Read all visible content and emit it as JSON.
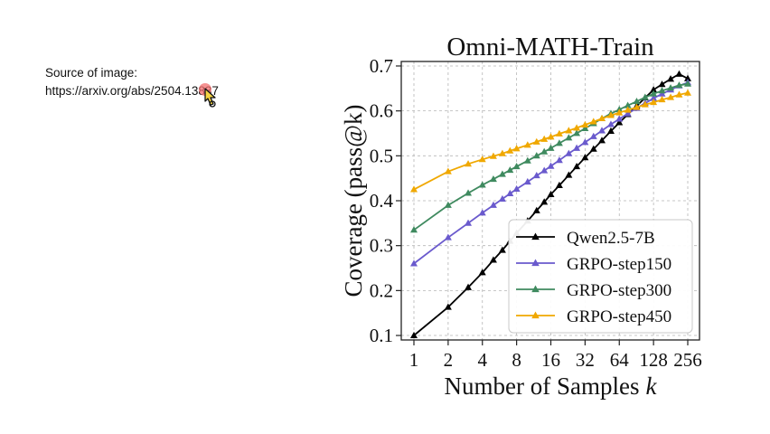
{
  "source": {
    "label": "Source of image:",
    "url": "https://arxiv.org/abs/2504.13837"
  },
  "chart_data": {
    "type": "line",
    "title": "Omni-MATH-Train",
    "xlabel": "Number of Samples",
    "xlabel_var": "k",
    "ylabel": "Coverage (pass@k)",
    "x_scale": "log2",
    "x": [
      1,
      2,
      3,
      4,
      5,
      6,
      7,
      8,
      10,
      12,
      14,
      16,
      19,
      23,
      27,
      32,
      38,
      45,
      54,
      64,
      76,
      91,
      108,
      128,
      152,
      181,
      215,
      256
    ],
    "x_ticks": [
      1,
      2,
      4,
      8,
      16,
      32,
      64,
      128,
      256
    ],
    "x_tick_labels": [
      "1",
      "2",
      "4",
      "8",
      "16",
      "32",
      "64",
      "128",
      "256"
    ],
    "ylim": [
      0.09,
      0.71
    ],
    "y_ticks": [
      0.1,
      0.2,
      0.3,
      0.4,
      0.5,
      0.6,
      0.7
    ],
    "y_tick_labels": [
      "0.1",
      "0.2",
      "0.3",
      "0.4",
      "0.5",
      "0.6",
      "0.7"
    ],
    "grid": true,
    "legend_position": "bottom-right",
    "series": [
      {
        "name": "Qwen2.5-7B",
        "color": "#000000",
        "marker": "triangle",
        "values": [
          0.1,
          0.163,
          0.207,
          0.24,
          0.268,
          0.29,
          0.31,
          0.328,
          0.355,
          0.378,
          0.397,
          0.414,
          0.434,
          0.457,
          0.476,
          0.496,
          0.515,
          0.534,
          0.555,
          0.574,
          0.592,
          0.611,
          0.629,
          0.647,
          0.659,
          0.671,
          0.682,
          0.672
        ]
      },
      {
        "name": "GRPO-step150",
        "color": "#6a5acd",
        "marker": "triangle",
        "values": [
          0.26,
          0.318,
          0.35,
          0.373,
          0.39,
          0.404,
          0.416,
          0.426,
          0.442,
          0.456,
          0.467,
          0.477,
          0.49,
          0.505,
          0.517,
          0.53,
          0.543,
          0.556,
          0.57,
          0.582,
          0.594,
          0.606,
          0.617,
          0.628,
          0.638,
          0.647,
          0.656,
          0.663
        ]
      },
      {
        "name": "GRPO-step300",
        "color": "#3f8a5f",
        "marker": "triangle",
        "values": [
          0.335,
          0.39,
          0.417,
          0.435,
          0.448,
          0.459,
          0.468,
          0.476,
          0.489,
          0.5,
          0.509,
          0.517,
          0.528,
          0.54,
          0.55,
          0.561,
          0.572,
          0.583,
          0.594,
          0.603,
          0.612,
          0.621,
          0.63,
          0.638,
          0.645,
          0.651,
          0.657,
          0.66
        ]
      },
      {
        "name": "GRPO-step450",
        "color": "#f0a800",
        "marker": "triangle",
        "values": [
          0.425,
          0.465,
          0.482,
          0.492,
          0.499,
          0.505,
          0.511,
          0.516,
          0.524,
          0.531,
          0.537,
          0.542,
          0.549,
          0.556,
          0.562,
          0.569,
          0.576,
          0.583,
          0.59,
          0.596,
          0.602,
          0.608,
          0.614,
          0.619,
          0.625,
          0.63,
          0.636,
          0.64
        ]
      }
    ]
  }
}
